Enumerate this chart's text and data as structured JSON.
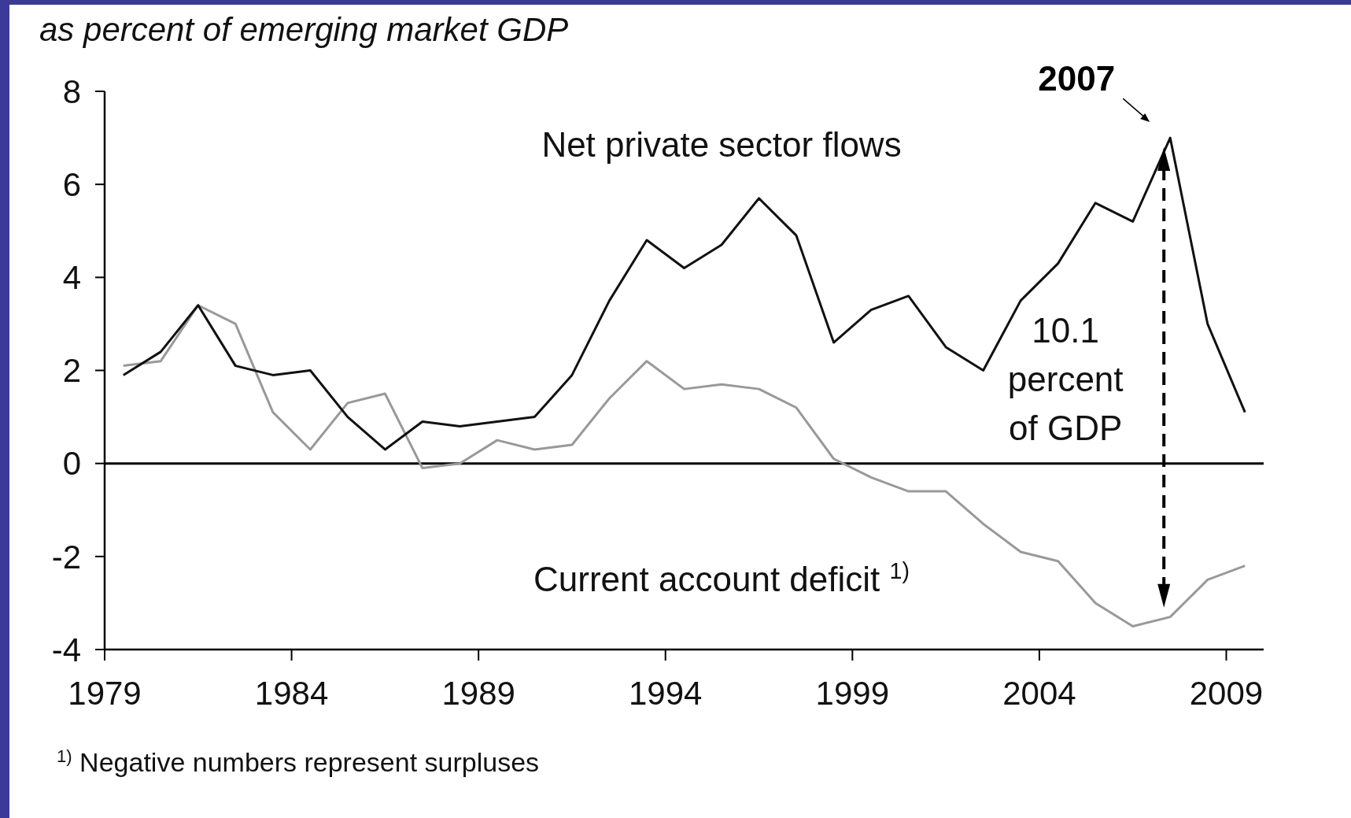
{
  "chart_data": {
    "type": "line",
    "title": "as percent of emerging market GDP",
    "x": [
      1979.5,
      1980.5,
      1981.5,
      1982.5,
      1983.5,
      1984.5,
      1985.5,
      1986.5,
      1987.5,
      1988.5,
      1989.5,
      1990.5,
      1991.5,
      1992.5,
      1993.5,
      1994.5,
      1995.5,
      1996.5,
      1997.5,
      1998.5,
      1999.5,
      2000.5,
      2001.5,
      2002.5,
      2003.5,
      2004.5,
      2005.5,
      2006.5,
      2007.5,
      2008.5,
      2009.5
    ],
    "series": [
      {
        "name": "Net private sector flows",
        "color": "#111111",
        "values": [
          1.9,
          2.4,
          3.4,
          2.1,
          1.9,
          2.0,
          1.0,
          0.3,
          0.9,
          0.8,
          0.9,
          1.0,
          1.9,
          3.5,
          4.8,
          4.2,
          4.7,
          5.7,
          4.9,
          2.6,
          3.3,
          3.6,
          2.5,
          2.0,
          3.5,
          4.3,
          5.6,
          5.2,
          7.0,
          3.0,
          1.1
        ]
      },
      {
        "name": "Current account deficit $^{1)}$",
        "color": "#999999",
        "values": [
          2.1,
          2.2,
          3.4,
          3.0,
          1.1,
          0.3,
          1.3,
          1.5,
          -0.1,
          0.0,
          0.5,
          0.3,
          0.4,
          1.4,
          2.2,
          1.6,
          1.7,
          1.6,
          1.2,
          0.1,
          -0.3,
          -0.6,
          -0.6,
          -1.3,
          -1.9,
          -2.1,
          -3.0,
          -3.5,
          -3.3,
          -2.5,
          -2.2
        ]
      }
    ],
    "xlim": [
      1979,
      2010
    ],
    "xticks": [
      1979,
      1984,
      1989,
      1994,
      1999,
      2004,
      2009
    ],
    "ylim": [
      -4,
      8
    ],
    "yticks": [
      -4,
      -2,
      0,
      2,
      4,
      6,
      8
    ],
    "ref_lines": [
      {
        "axis": "y",
        "value": 0,
        "color": "#000000"
      }
    ],
    "annotations": [
      {
        "text": "2007",
        "x": 2007.5,
        "y": 7.0
      },
      "10.1 percent of GDP",
      "$^{1)}$ Negative numbers represent surpluses"
    ],
    "grid": false
  }
}
